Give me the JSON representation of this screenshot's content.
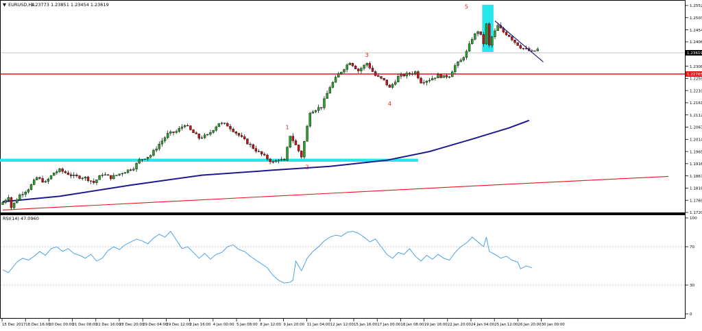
{
  "header": {
    "symbol": "EURUSD,H4",
    "ohlc": "1.23773 1.23851 1.23454 1.23619"
  },
  "chart_data": [
    {
      "type": "candlestick",
      "title": "EURUSD,H4",
      "yticks": [
        1.172,
        1.1769,
        1.1818,
        1.1867,
        1.1916,
        1.1965,
        1.2014,
        1.2063,
        1.2112,
        1.2161,
        1.221,
        1.2259,
        1.2308,
        1.23619,
        1.2406,
        1.2454,
        1.2503,
        1.2552
      ],
      "ylim": [
        1.172,
        1.2552
      ],
      "current_price_label": "1.23619",
      "resistance_label": "1.22765",
      "resistance_level": 1.22765,
      "xtick_labels": [
        "15 Dec 2017",
        "18 Dec 16:00",
        "20 Dec 00:00",
        "21 Dec 08:00",
        "22 Dec 16:00",
        "28 Dec 20:00",
        "29 Dec 04:00",
        "29 Dec 12:00",
        "2 Jan 16:00",
        "4 Jan 00:00",
        "5 Jan 08:00",
        "8 Jan 12:00",
        "9 Jan 20:00",
        "11 Jan 04:00",
        "12 Jan 12:00",
        "15 Jan 16:00",
        "17 Jan 00:00",
        "18 Jan 08:00",
        "19 Jan 16:00",
        "22 Jan 20:00",
        "24 Jan 04:00",
        "25 Jan 12:00",
        "26 Jan 20:00",
        "30 Jan 00:00"
      ],
      "wave_labels": [
        {
          "text": "1",
          "x_index": 100,
          "y": 1.2055
        },
        {
          "text": "2",
          "x_index": 107,
          "y": 1.1895
        },
        {
          "text": "3",
          "x_index": 128,
          "y": 1.2345
        },
        {
          "text": "4",
          "x_index": 136,
          "y": 1.215
        },
        {
          "text": "5",
          "x_index": 163,
          "y": 1.254
        }
      ],
      "ma_fast": [
        [
          0,
          1.1763
        ],
        [
          20,
          1.1785
        ],
        [
          45,
          1.183
        ],
        [
          70,
          1.187
        ],
        [
          95,
          1.189
        ],
        [
          115,
          1.1905
        ],
        [
          135,
          1.193
        ],
        [
          150,
          1.1965
        ],
        [
          165,
          1.2015
        ],
        [
          178,
          1.206
        ],
        [
          185,
          1.209
        ]
      ],
      "ma_slow": [
        [
          0,
          1.173
        ],
        [
          60,
          1.1765
        ],
        [
          120,
          1.18
        ],
        [
          180,
          1.1835
        ],
        [
          234,
          1.1865
        ]
      ],
      "support_zone": {
        "from_index": 0,
        "to_index": 146,
        "level": 1.193
      },
      "trendline": [
        [
          173,
          1.249
        ],
        [
          190,
          1.2325
        ]
      ],
      "highlight": {
        "from_index": 169,
        "to_index": 172,
        "low": 1.2365,
        "high": 1.2555
      },
      "segments": [
        [
          0,
          1.176
        ],
        [
          2,
          1.1785
        ],
        [
          3,
          1.174
        ],
        [
          6,
          1.179
        ],
        [
          9,
          1.1815
        ],
        [
          12,
          1.186
        ],
        [
          15,
          1.184
        ],
        [
          18,
          1.188
        ],
        [
          20,
          1.189
        ],
        [
          22,
          1.188
        ],
        [
          25,
          1.1865
        ],
        [
          29,
          1.186
        ],
        [
          32,
          1.184
        ],
        [
          35,
          1.1875
        ],
        [
          38,
          1.186
        ],
        [
          42,
          1.188
        ],
        [
          46,
          1.19
        ],
        [
          48,
          1.193
        ],
        [
          52,
          1.195
        ],
        [
          55,
          1.1995
        ],
        [
          58,
          1.2035
        ],
        [
          61,
          1.2045
        ],
        [
          64,
          1.2075
        ],
        [
          66,
          1.205
        ],
        [
          69,
          1.202
        ],
        [
          72,
          1.203
        ],
        [
          76,
          1.208
        ],
        [
          79,
          1.207
        ],
        [
          82,
          1.204
        ],
        [
          86,
          1.2
        ],
        [
          89,
          1.197
        ],
        [
          92,
          1.1945
        ],
        [
          95,
          1.192
        ],
        [
          97,
          1.1935
        ],
        [
          99,
          1.1925
        ],
        [
          101,
          1.203
        ],
        [
          103,
          1.199
        ],
        [
          105,
          1.1945
        ],
        [
          108,
          1.2125
        ],
        [
          112,
          1.2145
        ],
        [
          115,
          1.2225
        ],
        [
          118,
          1.2275
        ],
        [
          120,
          1.23
        ],
        [
          122,
          1.2325
        ],
        [
          125,
          1.229
        ],
        [
          128,
          1.232
        ],
        [
          131,
          1.227
        ],
        [
          134,
          1.225
        ],
        [
          136,
          1.222
        ],
        [
          139,
          1.2265
        ],
        [
          142,
          1.2275
        ],
        [
          145,
          1.2285
        ],
        [
          147,
          1.2245
        ],
        [
          150,
          1.2255
        ],
        [
          153,
          1.227
        ],
        [
          155,
          1.2265
        ],
        [
          157,
          1.227
        ],
        [
          159,
          1.231
        ],
        [
          161,
          1.233
        ],
        [
          163,
          1.2365
        ],
        [
          165,
          1.242
        ],
        [
          167,
          1.245
        ],
        [
          168,
          1.243
        ],
        [
          169,
          1.24
        ],
        [
          170,
          1.2475
        ],
        [
          171,
          1.239
        ],
        [
          172,
          1.2425
        ],
        [
          174,
          1.247
        ],
        [
          176,
          1.2445
        ],
        [
          178,
          1.243
        ],
        [
          180,
          1.2405
        ],
        [
          182,
          1.2385
        ],
        [
          184,
          1.2375
        ],
        [
          186,
          1.2365
        ],
        [
          188,
          1.2375
        ]
      ]
    },
    {
      "type": "line",
      "title": "RSI(14) 47.0960",
      "yticks": [
        0,
        30,
        70,
        100
      ],
      "ylim": [
        0,
        100
      ],
      "series": [
        {
          "values": [
            [
              0,
              46
            ],
            [
              2,
              43
            ],
            [
              5,
              54
            ],
            [
              7,
              58
            ],
            [
              9,
              56
            ],
            [
              11,
              60
            ],
            [
              13,
              65
            ],
            [
              15,
              61
            ],
            [
              17,
              68
            ],
            [
              19,
              70
            ],
            [
              21,
              65
            ],
            [
              23,
              68
            ],
            [
              25,
              63
            ],
            [
              27,
              61
            ],
            [
              29,
              58
            ],
            [
              31,
              62
            ],
            [
              33,
              55
            ],
            [
              35,
              58
            ],
            [
              37,
              66
            ],
            [
              39,
              70
            ],
            [
              41,
              67
            ],
            [
              43,
              72
            ],
            [
              45,
              75
            ],
            [
              47,
              78
            ],
            [
              49,
              76
            ],
            [
              51,
              73
            ],
            [
              53,
              79
            ],
            [
              55,
              83
            ],
            [
              57,
              80
            ],
            [
              59,
              86
            ],
            [
              61,
              77
            ],
            [
              63,
              68
            ],
            [
              65,
              70
            ],
            [
              67,
              64
            ],
            [
              69,
              58
            ],
            [
              71,
              63
            ],
            [
              73,
              57
            ],
            [
              75,
              62
            ],
            [
              77,
              64
            ],
            [
              79,
              70
            ],
            [
              81,
              72
            ],
            [
              83,
              67
            ],
            [
              85,
              65
            ],
            [
              87,
              60
            ],
            [
              89,
              56
            ],
            [
              91,
              52
            ],
            [
              93,
              48
            ],
            [
              95,
              40
            ],
            [
              97,
              35
            ],
            [
              99,
              32
            ],
            [
              101,
              33
            ],
            [
              102,
              35
            ],
            [
              103,
              55
            ],
            [
              105,
              45
            ],
            [
              107,
              58
            ],
            [
              109,
              65
            ],
            [
              111,
              70
            ],
            [
              113,
              76
            ],
            [
              115,
              80
            ],
            [
              117,
              82
            ],
            [
              119,
              81
            ],
            [
              121,
              85
            ],
            [
              123,
              86
            ],
            [
              125,
              84
            ],
            [
              127,
              80
            ],
            [
              129,
              75
            ],
            [
              131,
              78
            ],
            [
              133,
              70
            ],
            [
              135,
              62
            ],
            [
              137,
              58
            ],
            [
              139,
              64
            ],
            [
              141,
              62
            ],
            [
              143,
              68
            ],
            [
              145,
              60
            ],
            [
              147,
              55
            ],
            [
              149,
              61
            ],
            [
              151,
              57
            ],
            [
              153,
              62
            ],
            [
              155,
              58
            ],
            [
              157,
              56
            ],
            [
              159,
              64
            ],
            [
              161,
              70
            ],
            [
              163,
              74
            ],
            [
              165,
              80
            ],
            [
              167,
              75
            ],
            [
              169,
              70
            ],
            [
              170,
              80
            ],
            [
              171,
              65
            ],
            [
              173,
              62
            ],
            [
              175,
              58
            ],
            [
              177,
              60
            ],
            [
              179,
              56
            ],
            [
              181,
              54
            ],
            [
              182,
              47
            ],
            [
              184,
              50
            ],
            [
              186,
              48
            ]
          ]
        }
      ]
    }
  ]
}
